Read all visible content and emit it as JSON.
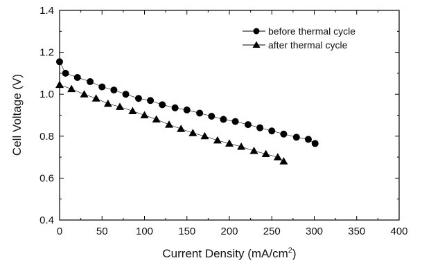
{
  "chart_data": {
    "type": "scatter",
    "title": "",
    "xlabel_text": "Current Density (mA/cm",
    "xlabel_sup": "2",
    "xlabel_close": ")",
    "ylabel": "Cell Voltage (V)",
    "xlim": [
      0,
      400
    ],
    "ylim": [
      0.4,
      1.4
    ],
    "xticks": [
      "0",
      "50",
      "100",
      "150",
      "200",
      "250",
      "300",
      "350",
      "400"
    ],
    "yticks": [
      "0.4",
      "0.6",
      "0.8",
      "1.0",
      "1.2",
      "1.4"
    ],
    "grid": false,
    "legend_position": "top-right",
    "series": [
      {
        "name": "before thermal cycle",
        "marker": "circle",
        "color": "#000000",
        "x": [
          0,
          7,
          21,
          36,
          50,
          64,
          78,
          93,
          107,
          121,
          136,
          150,
          165,
          179,
          193,
          207,
          222,
          236,
          250,
          264,
          279,
          293,
          301
        ],
        "y": [
          1.155,
          1.1,
          1.08,
          1.06,
          1.035,
          1.02,
          1.0,
          0.98,
          0.97,
          0.95,
          0.935,
          0.925,
          0.91,
          0.895,
          0.88,
          0.87,
          0.855,
          0.84,
          0.825,
          0.81,
          0.795,
          0.785,
          0.765
        ]
      },
      {
        "name": "after thermal cycle",
        "marker": "triangle",
        "color": "#000000",
        "x": [
          0,
          14,
          29,
          43,
          57,
          71,
          86,
          100,
          114,
          129,
          143,
          157,
          171,
          186,
          200,
          214,
          229,
          243,
          257,
          264
        ],
        "y": [
          1.045,
          1.025,
          1.0,
          0.98,
          0.955,
          0.94,
          0.92,
          0.9,
          0.88,
          0.855,
          0.835,
          0.815,
          0.8,
          0.78,
          0.765,
          0.75,
          0.73,
          0.715,
          0.7,
          0.68
        ]
      }
    ]
  }
}
